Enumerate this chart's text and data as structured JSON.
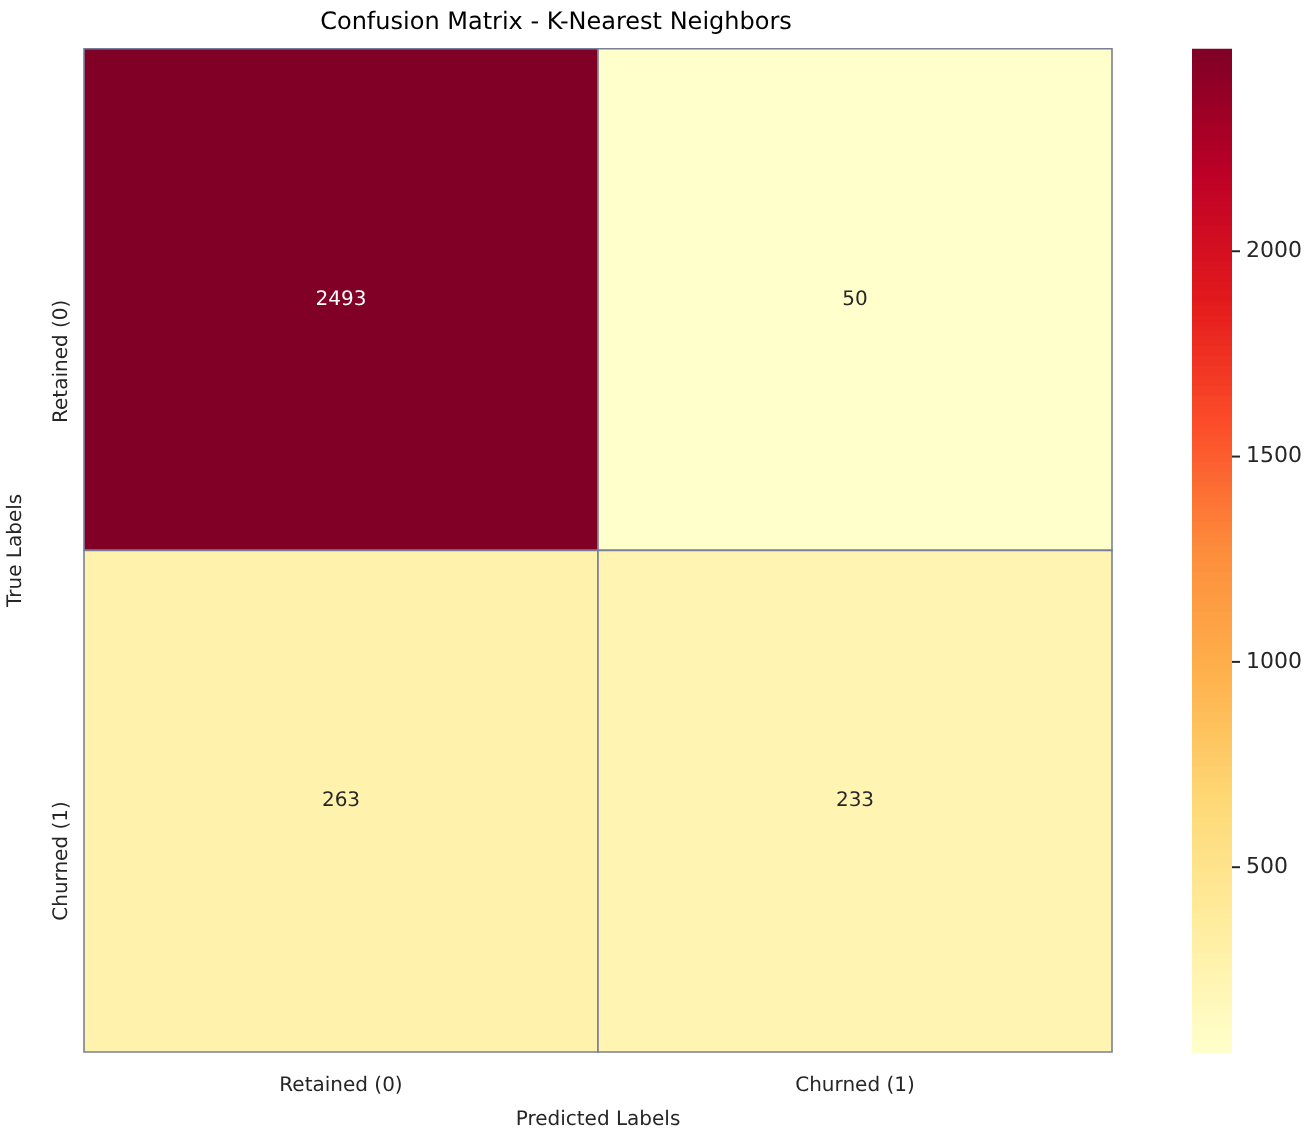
{
  "chart_data": {
    "type": "heatmap",
    "title": "Confusion Matrix - K-Nearest Neighbors",
    "xlabel": "Predicted Labels",
    "ylabel": "True Labels",
    "categories": [
      "Retained (0)",
      "Churned (1)"
    ],
    "y_categories": [
      "Retained (0)",
      "Churned (1)"
    ],
    "cells": [
      [
        2493,
        50
      ],
      [
        263,
        233
      ]
    ],
    "data_labels": true,
    "clim": [
      50,
      2493
    ],
    "cticks": [
      500,
      1000,
      1500,
      2000
    ]
  }
}
